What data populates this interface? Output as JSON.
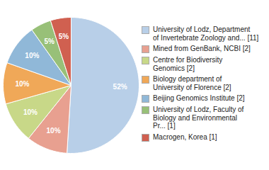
{
  "chart_data": {
    "type": "pie",
    "categories": [
      "University of Lodz, Department\nof Invertebrate Zoology and... [11]",
      "Mined from GenBank, NCBI [2]",
      "Centre for Biodiversity\nGenomics [2]",
      "Biology department of\nUniversity of Florence [2]",
      "Beijing Genomics Institute [2]",
      "University of Lodz, Faculty of\nBiology and Environmental\nPr... [1]",
      "Macrogen, Korea [1]"
    ],
    "values": [
      52,
      10,
      10,
      10,
      10,
      5,
      5
    ],
    "value_labels": [
      "52%",
      "10%",
      "10%",
      "10%",
      "10%",
      "5%",
      "5%"
    ],
    "colors": [
      "#b8cfe8",
      "#e8a090",
      "#c8d888",
      "#f0a858",
      "#90b8d8",
      "#98c078",
      "#d06050"
    ],
    "data_labels": true,
    "legend": "right"
  }
}
